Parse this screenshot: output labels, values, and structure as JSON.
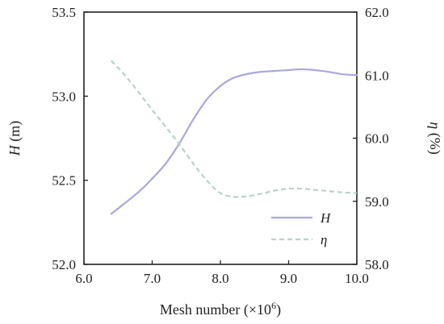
{
  "chart_data": {
    "type": "line",
    "x_label": {
      "main": "Mesh number (×10",
      "sup": "6",
      "end": ")"
    },
    "y_left_label": {
      "italic": "H",
      "unit": " (m)"
    },
    "y_right_label": {
      "italic": "η",
      "unit": " (%)"
    },
    "x_ticks": [
      "6.0",
      "7.0",
      "8.0",
      "9.0",
      "10.0"
    ],
    "y_left_ticks": [
      "52.0",
      "52.5",
      "53.0",
      "53.5"
    ],
    "y_right_ticks": [
      "58.0",
      "59.0",
      "60.0",
      "61.0",
      "62.0"
    ],
    "xlim": [
      6.0,
      10.0
    ],
    "ylim_left": [
      52.0,
      53.5
    ],
    "ylim_right": [
      58.0,
      62.0
    ],
    "grid": false,
    "legend_position": "bottom-right",
    "series": [
      {
        "name": "H",
        "axis": "left",
        "style": "solid",
        "color": "#aaa8dc",
        "x": [
          6.4,
          6.8,
          7.0,
          7.2,
          7.4,
          7.6,
          7.8,
          8.0,
          8.2,
          8.5,
          8.8,
          9.0,
          9.2,
          9.5,
          9.8,
          10.0
        ],
        "y": [
          52.3,
          52.43,
          52.51,
          52.6,
          52.72,
          52.86,
          52.98,
          53.06,
          53.11,
          53.14,
          53.15,
          53.155,
          53.16,
          53.15,
          53.13,
          53.125
        ]
      },
      {
        "name": "η",
        "axis": "right",
        "style": "dashed",
        "color": "#b9d3c6",
        "x": [
          6.4,
          6.6,
          6.8,
          7.0,
          7.2,
          7.4,
          7.6,
          7.8,
          8.0,
          8.2,
          8.4,
          8.6,
          8.8,
          9.0,
          9.2,
          9.4,
          9.6,
          9.8,
          10.0
        ],
        "y": [
          61.23,
          61.0,
          60.73,
          60.45,
          60.18,
          59.9,
          59.6,
          59.33,
          59.13,
          59.07,
          59.08,
          59.12,
          59.17,
          59.2,
          59.2,
          59.18,
          59.16,
          59.14,
          59.13
        ]
      }
    ]
  }
}
